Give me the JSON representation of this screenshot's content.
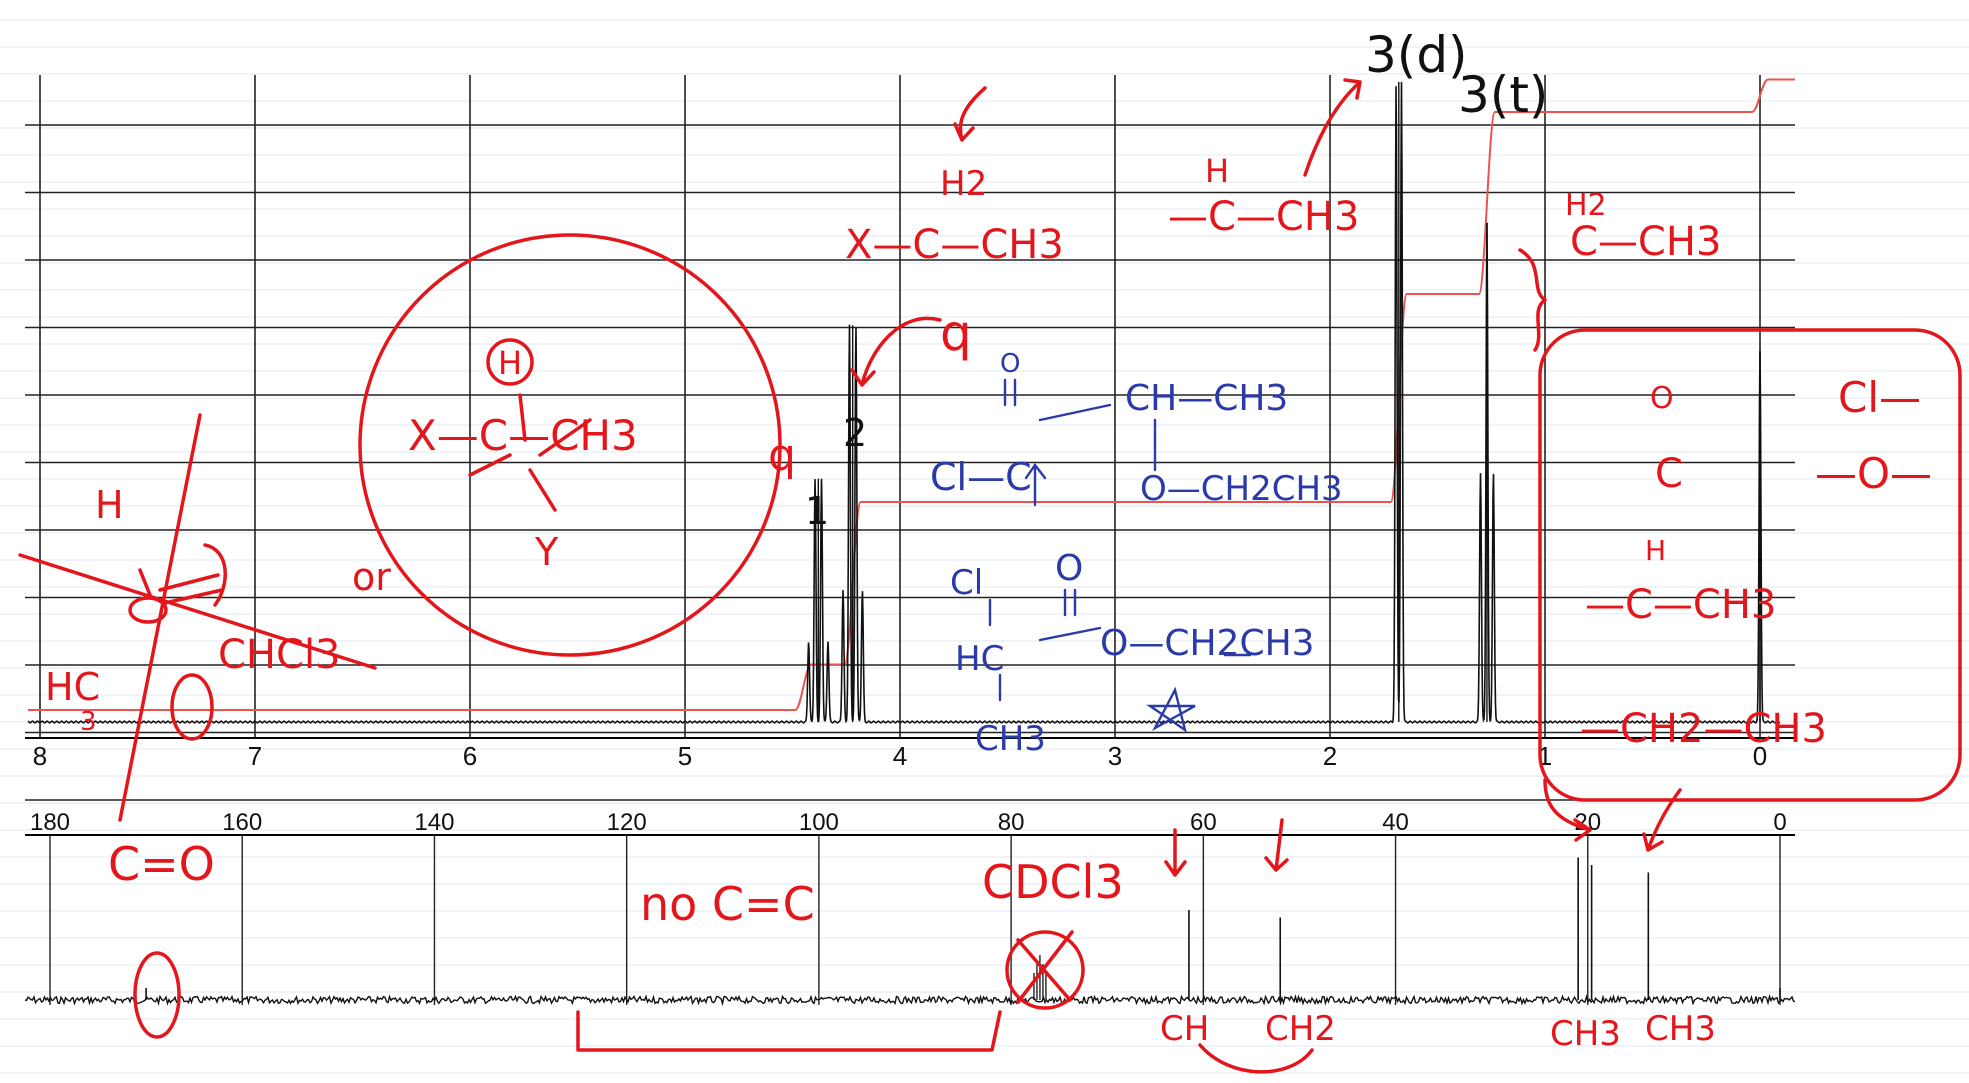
{
  "chart_data": [
    {
      "type": "line",
      "title": "",
      "xlabel": "",
      "ylabel": "",
      "x_ticks": [
        "8",
        "7",
        "6",
        "5",
        "4",
        "3",
        "2",
        "1",
        "0"
      ],
      "xlim": [
        8,
        0
      ],
      "grid": true,
      "peaks": [
        {
          "shift": 4.38,
          "height": 0.38,
          "label": "1",
          "multiplicity": "q"
        },
        {
          "shift": 4.22,
          "height": 0.62,
          "label": "2",
          "multiplicity": "q"
        },
        {
          "shift": 1.68,
          "height": 1.0,
          "label": "3(d)"
        },
        {
          "shift": 1.27,
          "height": 0.78,
          "label": "3(t)"
        },
        {
          "shift": 0.0,
          "height": 0.58
        }
      ],
      "integral_steps": [
        {
          "at": 4.45,
          "to": 0.07
        },
        {
          "at": 4.22,
          "to": 0.32
        },
        {
          "at": 1.68,
          "to": 0.64
        },
        {
          "at": 1.27,
          "to": 0.92
        },
        {
          "at": 0.0,
          "to": 0.97
        }
      ]
    },
    {
      "type": "line",
      "title": "",
      "x_ticks": [
        "180",
        "160",
        "140",
        "120",
        "100",
        "80",
        "60",
        "40",
        "20",
        "0"
      ],
      "xlim": [
        180,
        0
      ],
      "grid": true,
      "peaks": [
        {
          "shift": 170.0,
          "height": 0.08
        },
        {
          "shift": 77.0,
          "height": 0.3
        },
        {
          "shift": 61.5,
          "height": 0.6
        },
        {
          "shift": 52.0,
          "height": 0.55
        },
        {
          "shift": 21.0,
          "height": 0.95
        },
        {
          "shift": 19.6,
          "height": 0.9
        },
        {
          "shift": 13.7,
          "height": 0.85
        },
        {
          "shift": 0.0,
          "height": 0.08
        }
      ]
    }
  ],
  "annotations": {
    "label_1": "1",
    "label_2": "2",
    "label_3d": "3(d)",
    "label_3t": "3(t)",
    "q_upper": "q",
    "q_lower": "q",
    "h2_top": "H2",
    "x_ch2_ch3": "X—C—CH3",
    "h_top2": "H",
    "ch_ch3": "—C—CH3",
    "h2_right": "H2",
    "c_ch3_right": "C—CH3",
    "circle_h": "H",
    "x_c_ch3": "X—C—CH3",
    "y_label": "Y",
    "or_label": "or",
    "left_h": "H",
    "left_hc": "HC",
    "left_3": "3",
    "chcl3": "CHCl3",
    "blue_o1": "O",
    "blue_cl_c": "Cl—C",
    "blue_ch_ch3": "CH—CH3",
    "blue_o_ch2ch3": "O—CH2CH3",
    "blue_cl2": "Cl",
    "blue_o2": "O",
    "blue_hc": "HC",
    "blue_ch3": "CH3",
    "blue_o_ch2ch3_b": "O—CH2CH3",
    "right_o": "O",
    "right_c": "C",
    "right_h": "H",
    "right_c_ch3": "—C—CH3",
    "right_ch2_ch3": "—CH2—CH3",
    "cl_label": "Cl—",
    "o_label": "—O—",
    "c_eq_o": "C=O",
    "no_cc": "no C=C",
    "cdcl3": "CDCl3",
    "ch_lbl": "CH",
    "ch2_lbl": "CH2",
    "ch3_lbl_a": "CH3",
    "ch3_lbl_b": "CH3"
  },
  "colors": {
    "ink_red": "#e4161b",
    "ink_blue": "#2a3aa8",
    "ink_black": "#111111",
    "integral": "#ef5350",
    "grid": "#222222",
    "notebook_line": "#dfe8f2"
  }
}
